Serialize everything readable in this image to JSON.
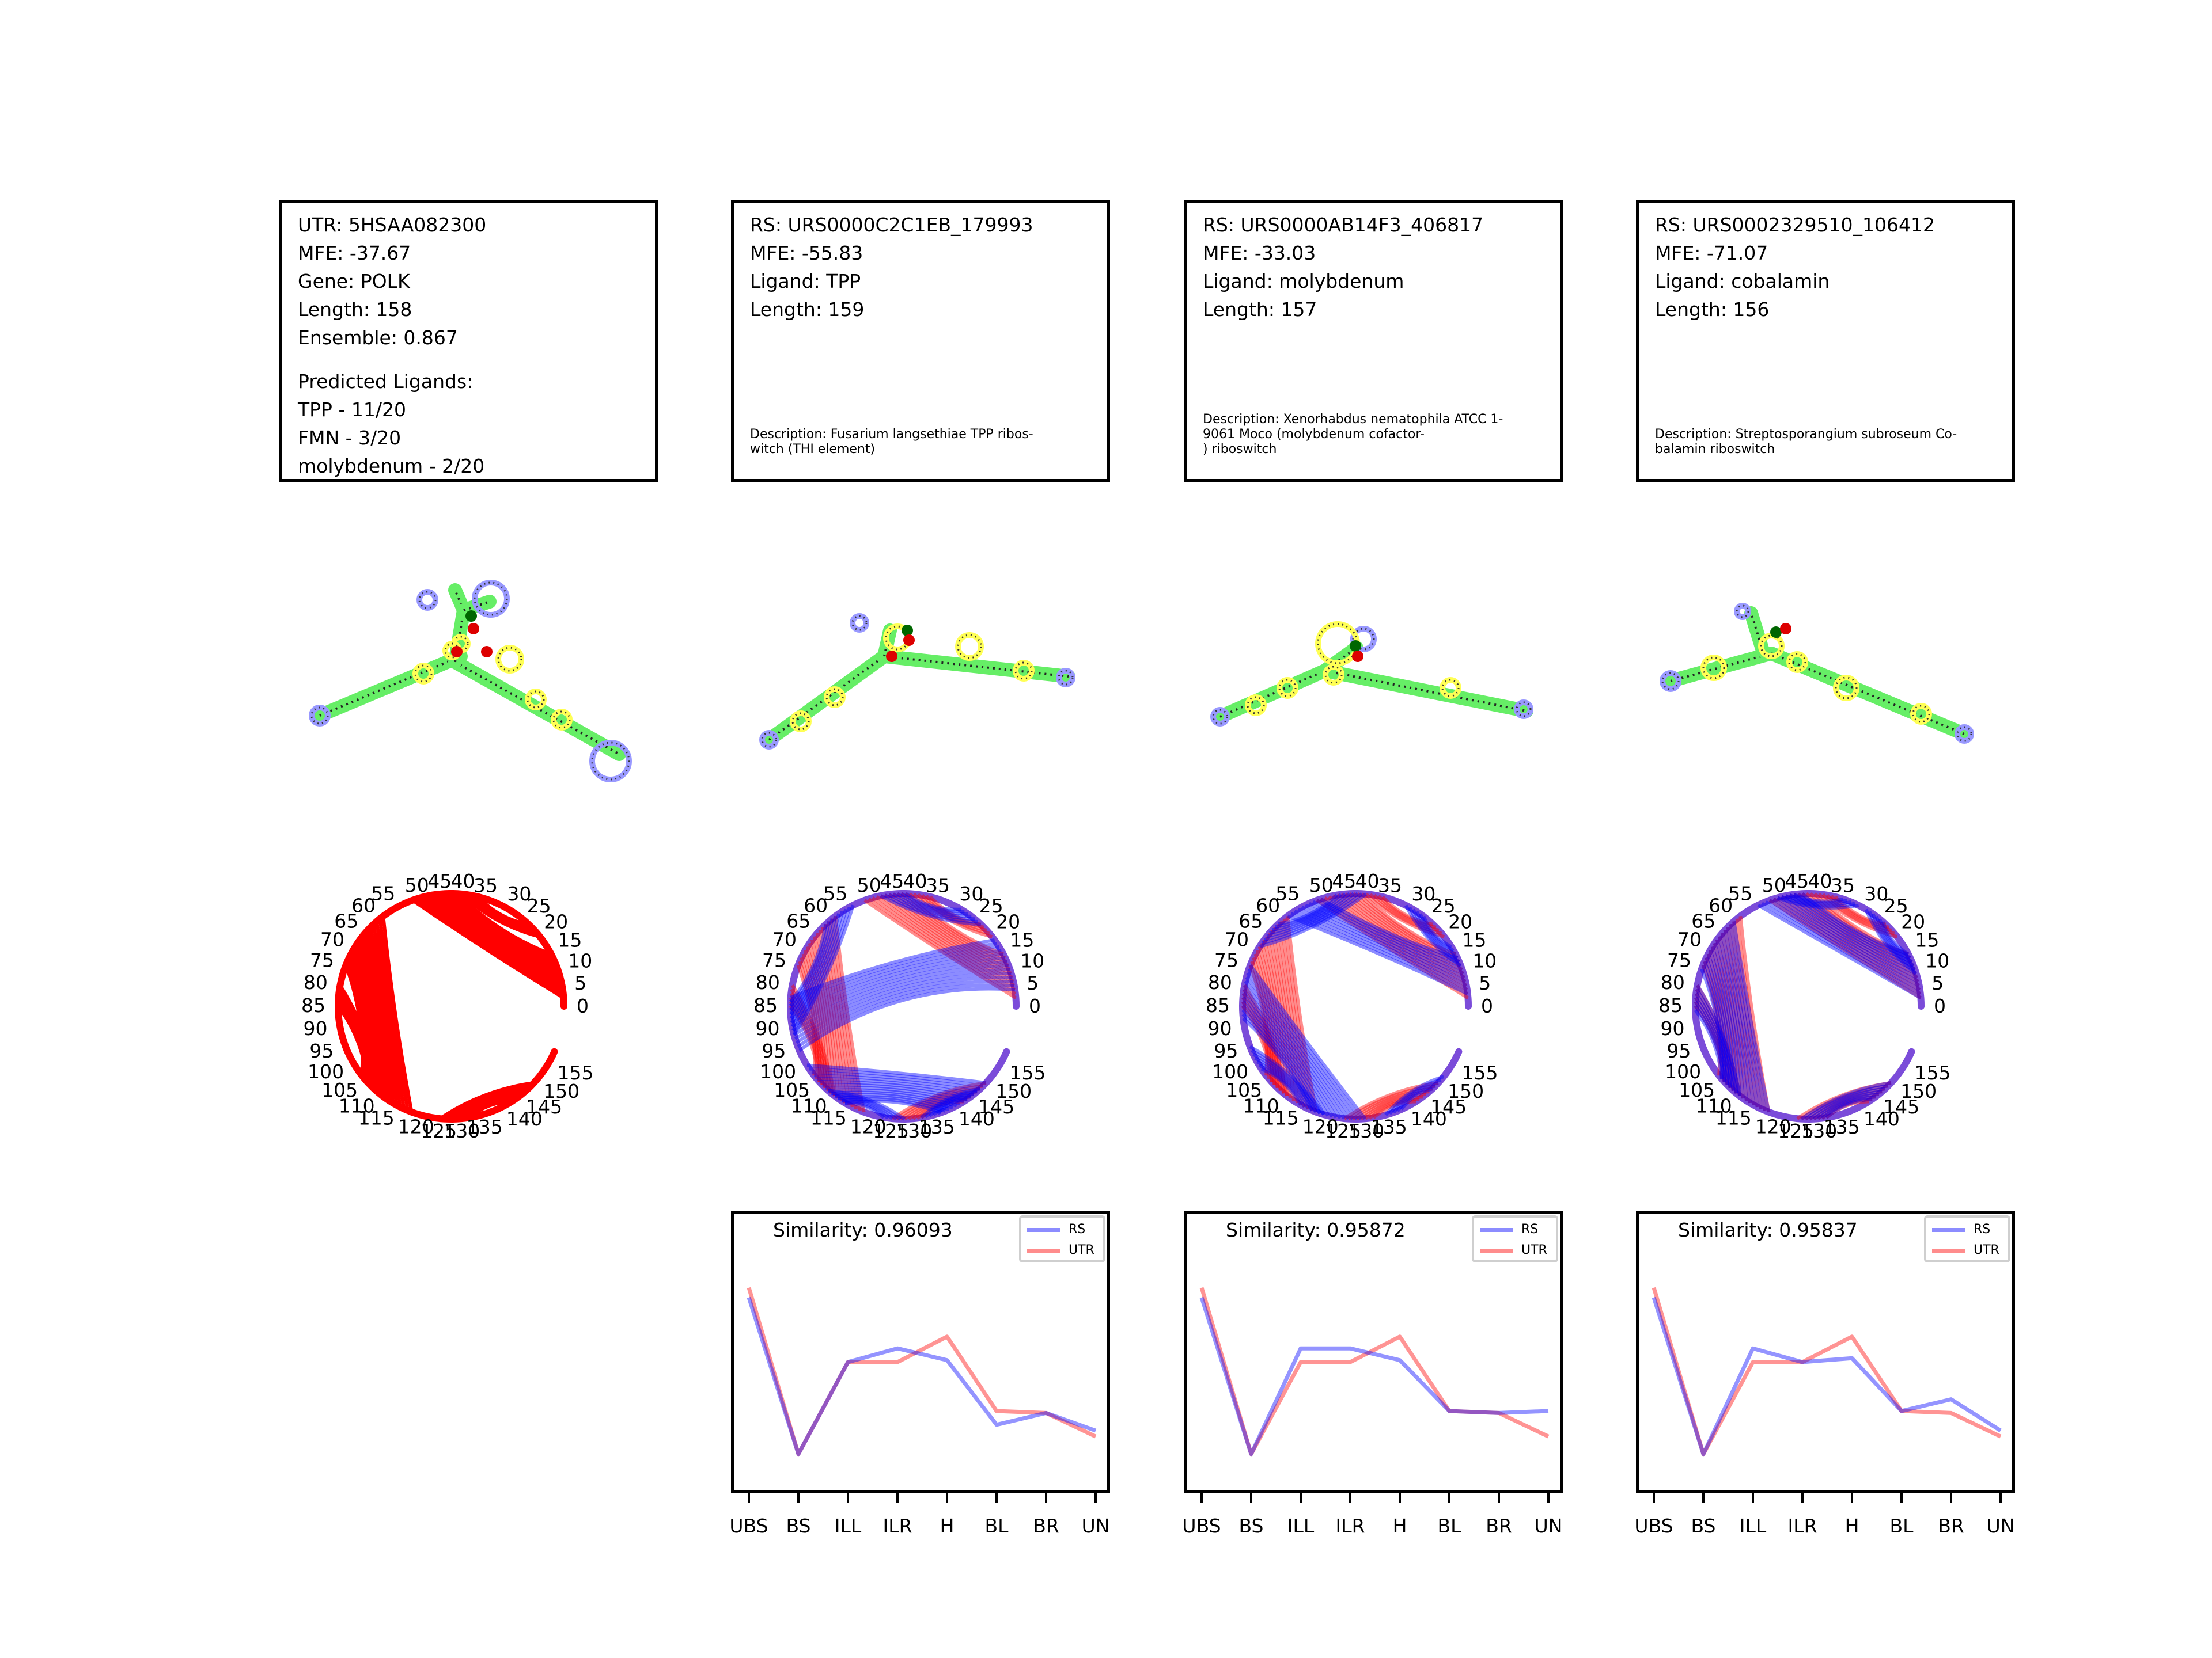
{
  "colors": {
    "rs": "#0000ff",
    "utr": "#ff0000",
    "bp_fill": "#66ee66",
    "loop_hp": "#9999ff",
    "loop_int": "#ffff55",
    "green_dot": "#006600",
    "red_dot": "#dd0000"
  },
  "columns": [
    {
      "info_lines": [
        "UTR: 5HSAA082300",
        "MFE: -37.67",
        "Gene: POLK",
        "Length: 158",
        "Ensemble: 0.867"
      ],
      "predicted_lines": [
        "Predicted Ligands:",
        "TPP - 11/20",
        "FMN - 3/20",
        "molybdenum - 2/20"
      ],
      "description": ""
    },
    {
      "info_lines": [
        "RS: URS0000C2C1EB_179993",
        "MFE: -55.83",
        "Ligand: TPP",
        "Length: 159"
      ],
      "predicted_lines": [],
      "description": "Description: Fusarium langsethiae TPP ribos-\nwitch (THI element)"
    },
    {
      "info_lines": [
        "RS: URS0000AB14F3_406817",
        "MFE: -33.03",
        "Ligand: molybdenum",
        "Length: 157"
      ],
      "predicted_lines": [],
      "description": "Description: Xenorhabdus nematophila ATCC 1-\n9061 Moco (molybdenum cofactor-\n) riboswitch"
    },
    {
      "info_lines": [
        "RS: URS0002329510_106412",
        "MFE: -71.07",
        "Ligand: cobalamin",
        "Length: 156"
      ],
      "predicted_lines": [],
      "description": "Description: Streptosporangium subroseum Co-\nbalamin riboswitch"
    }
  ],
  "circle_tick_labels": [
    "0",
    "5",
    "10",
    "15",
    "20",
    "25",
    "30",
    "35",
    "40",
    "45",
    "50",
    "55",
    "60",
    "65",
    "70",
    "75",
    "80",
    "85",
    "90",
    "95",
    "100",
    "105",
    "110",
    "115",
    "120",
    "125",
    "130",
    "135",
    "140",
    "145",
    "150",
    "155"
  ],
  "chart_data": [
    {
      "type": "line",
      "title": "Similarity: 0.96093",
      "categories": [
        "UBS",
        "BS",
        "ILL",
        "ILR",
        "H",
        "BL",
        "BR",
        "UN"
      ],
      "series": [
        {
          "name": "RS",
          "values": [
            0.88,
            0.08,
            0.55,
            0.62,
            0.56,
            0.23,
            0.29,
            0.2
          ]
        },
        {
          "name": "UTR",
          "values": [
            0.93,
            0.08,
            0.55,
            0.55,
            0.68,
            0.3,
            0.29,
            0.17
          ]
        }
      ],
      "ylim": [
        0,
        1
      ]
    },
    {
      "type": "line",
      "title": "Similarity: 0.95872",
      "categories": [
        "UBS",
        "BS",
        "ILL",
        "ILR",
        "H",
        "BL",
        "BR",
        "UN"
      ],
      "series": [
        {
          "name": "RS",
          "values": [
            0.88,
            0.08,
            0.62,
            0.62,
            0.56,
            0.3,
            0.29,
            0.3
          ]
        },
        {
          "name": "UTR",
          "values": [
            0.93,
            0.08,
            0.55,
            0.55,
            0.68,
            0.3,
            0.29,
            0.17
          ]
        }
      ],
      "ylim": [
        0,
        1
      ]
    },
    {
      "type": "line",
      "title": "Similarity: 0.95837",
      "categories": [
        "UBS",
        "BS",
        "ILL",
        "ILR",
        "H",
        "BL",
        "BR",
        "UN"
      ],
      "series": [
        {
          "name": "RS",
          "values": [
            0.88,
            0.08,
            0.62,
            0.55,
            0.57,
            0.3,
            0.36,
            0.2
          ]
        },
        {
          "name": "UTR",
          "values": [
            0.93,
            0.08,
            0.55,
            0.55,
            0.68,
            0.3,
            0.29,
            0.17
          ]
        }
      ],
      "ylim": [
        0,
        1
      ]
    }
  ]
}
